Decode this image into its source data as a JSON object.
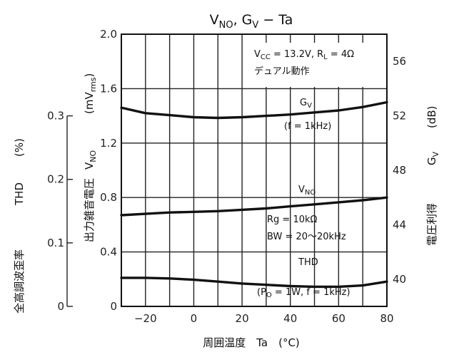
{
  "chart_data": {
    "type": "line",
    "title": "VNO, GV − Ta",
    "xlabel": "周囲温度　Ta　(°C)",
    "xlim": [
      -30,
      80
    ],
    "x_ticks": [
      "−20",
      "0",
      "20",
      "40",
      "60",
      "80"
    ],
    "axes": {
      "vno": {
        "label": "出力雑音電圧　VNO　(mVrms)",
        "lim": [
          0,
          2.0
        ],
        "ticks": [
          "0",
          "0.4",
          "0.8",
          "1.2",
          "1.6",
          "2.0"
        ]
      },
      "thd": {
        "label": "全高調波歪率　THD　(%)",
        "lim": [
          0,
          0.3
        ],
        "ticks": [
          "0",
          "0.1",
          "0.2",
          "0.3"
        ]
      },
      "gv": {
        "label": "電圧利得　GV　(dB)",
        "lim": [
          38,
          58
        ],
        "ticks": [
          "40",
          "44",
          "48",
          "52",
          "56"
        ]
      }
    },
    "conditions": [
      "VCC = 13.2V, RL = 4Ω",
      "デュアル動作"
    ],
    "series": [
      {
        "name": "GV",
        "axis": "gv",
        "note": "(f = 1kHz)",
        "x": [
          -30,
          -20,
          -10,
          0,
          10,
          20,
          30,
          40,
          50,
          60,
          70,
          80
        ],
        "y": [
          52.6,
          52.2,
          52.05,
          51.9,
          51.85,
          51.9,
          52.0,
          52.1,
          52.25,
          52.4,
          52.65,
          53.0
        ]
      },
      {
        "name": "VNO",
        "axis": "vno",
        "notes": [
          "Rg = 10kΩ",
          "BW = 20〜20kHz"
        ],
        "x": [
          -30,
          -20,
          -10,
          0,
          10,
          20,
          30,
          40,
          50,
          60,
          70,
          80
        ],
        "y": [
          0.67,
          0.68,
          0.69,
          0.695,
          0.7,
          0.71,
          0.72,
          0.735,
          0.75,
          0.765,
          0.78,
          0.8
        ]
      },
      {
        "name": "THD",
        "axis": "thd",
        "note": "(PO = 1W, f = 1kHz)",
        "x": [
          -30,
          -20,
          -10,
          0,
          10,
          20,
          30,
          40,
          50,
          60,
          70,
          80
        ],
        "y": [
          0.045,
          0.045,
          0.044,
          0.042,
          0.039,
          0.036,
          0.034,
          0.032,
          0.031,
          0.031,
          0.033,
          0.039
        ]
      }
    ]
  }
}
